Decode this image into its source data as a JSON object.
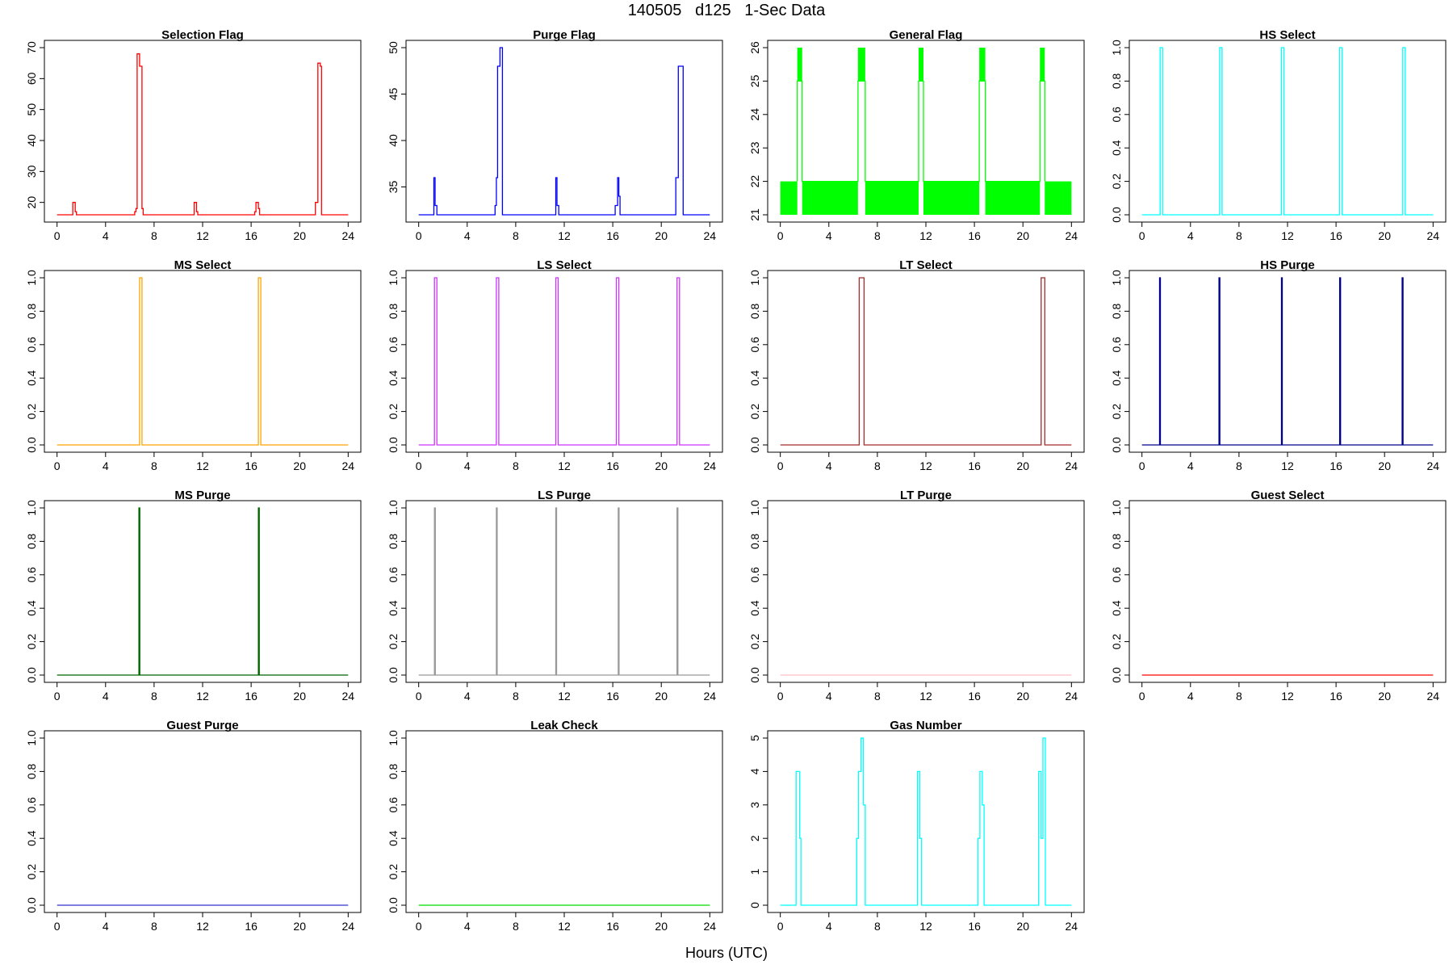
{
  "figure": {
    "title": "140505   d125   1-Sec Data",
    "xlabel": "Hours (UTC)"
  },
  "chart_data": [
    {
      "type": "line",
      "title": "Selection Flag",
      "color": "#ff0000",
      "xlim": [
        0,
        24
      ],
      "ylim": [
        16,
        70
      ],
      "xticks": [
        0,
        4,
        8,
        12,
        16,
        20,
        24
      ],
      "yticks": [
        20,
        30,
        40,
        50,
        60,
        70
      ],
      "series": [
        {
          "x": [
            0,
            1.3,
            1.3,
            1.5,
            1.5,
            1.6,
            1.6,
            6.4,
            6.4,
            6.5,
            6.5,
            6.6,
            6.6,
            6.8,
            6.8,
            7.0,
            7.0,
            7.1,
            7.1,
            11.3,
            11.3,
            11.5,
            11.5,
            11.6,
            11.6,
            16.3,
            16.3,
            16.4,
            16.4,
            16.6,
            16.6,
            16.7,
            16.7,
            21.3,
            21.3,
            21.5,
            21.5,
            21.7,
            21.7,
            21.8,
            21.8,
            24
          ],
          "y": [
            16,
            16,
            20,
            20,
            17,
            17,
            16,
            16,
            17,
            17,
            18,
            18,
            68,
            68,
            64,
            64,
            18,
            18,
            16,
            16,
            20,
            20,
            17,
            17,
            16,
            16,
            17,
            17,
            20,
            20,
            18,
            18,
            16,
            16,
            20,
            20,
            65,
            65,
            64,
            64,
            16,
            16
          ]
        }
      ]
    },
    {
      "type": "line",
      "title": "Purge Flag",
      "color": "#0000ff",
      "xlim": [
        0,
        24
      ],
      "ylim": [
        32,
        50
      ],
      "xticks": [
        0,
        4,
        8,
        12,
        16,
        20,
        24
      ],
      "yticks": [
        35,
        40,
        45,
        50
      ],
      "series": [
        {
          "x": [
            0,
            1.25,
            1.25,
            1.35,
            1.35,
            1.5,
            1.5,
            6.3,
            6.3,
            6.4,
            6.4,
            6.5,
            6.5,
            6.7,
            6.7,
            6.9,
            6.9,
            11.3,
            11.3,
            11.4,
            11.4,
            11.55,
            11.55,
            16.2,
            16.2,
            16.4,
            16.4,
            16.5,
            16.5,
            16.6,
            16.6,
            21.2,
            21.2,
            21.4,
            21.4,
            21.8,
            21.8,
            24
          ],
          "y": [
            32,
            32,
            36,
            36,
            33,
            33,
            32,
            32,
            33,
            33,
            36,
            36,
            48,
            48,
            50,
            50,
            32,
            32,
            36,
            36,
            33,
            33,
            32,
            32,
            33,
            33,
            36,
            36,
            34,
            34,
            32,
            32,
            36,
            36,
            48,
            48,
            32,
            32
          ]
        }
      ]
    },
    {
      "type": "line",
      "title": "General Flag",
      "color": "#00ff00",
      "xlim": [
        0,
        24
      ],
      "ylim": [
        21,
        26
      ],
      "xticks": [
        0,
        4,
        8,
        12,
        16,
        20,
        24
      ],
      "yticks": [
        21,
        22,
        23,
        24,
        25,
        26
      ],
      "bands": [
        [
          0,
          1.4,
          21,
          22
        ],
        [
          1.8,
          6.4,
          21,
          22
        ],
        [
          7.0,
          11.4,
          21,
          22
        ],
        [
          11.8,
          16.4,
          21,
          22
        ],
        [
          16.9,
          21.4,
          21,
          22
        ],
        [
          21.8,
          24,
          21,
          22
        ],
        [
          1.4,
          1.8,
          25,
          26
        ],
        [
          6.4,
          6.8,
          25,
          26
        ],
        [
          6.75,
          7.0,
          25,
          26
        ],
        [
          11.4,
          11.8,
          25,
          26
        ],
        [
          16.4,
          16.9,
          25,
          26
        ],
        [
          21.4,
          21.8,
          25,
          26
        ]
      ],
      "series": [
        {
          "x": [
            1.4,
            1.4,
            1.8,
            1.8,
            6.4,
            6.4,
            7.0,
            7.0,
            11.4,
            11.4,
            11.8,
            11.8,
            16.4,
            16.4,
            16.9,
            16.9,
            21.4,
            21.4,
            21.8,
            21.8
          ],
          "y": [
            22,
            25,
            25,
            22,
            22,
            25,
            25,
            22,
            22,
            25,
            25,
            22,
            22,
            25,
            25,
            22,
            22,
            25,
            25,
            22
          ]
        }
      ]
    },
    {
      "type": "line",
      "title": "HS Select",
      "color": "#00ffff",
      "xlim": [
        0,
        24
      ],
      "ylim": [
        0,
        1
      ],
      "xticks": [
        0,
        4,
        8,
        12,
        16,
        20,
        24
      ],
      "yticks": [
        0,
        0.2,
        0.4,
        0.6,
        0.8,
        1
      ],
      "series": [
        {
          "x": [
            0,
            1.5,
            1.5,
            1.7,
            1.7,
            6.4,
            6.4,
            6.6,
            6.6,
            11.5,
            11.5,
            11.7,
            11.7,
            16.3,
            16.3,
            16.5,
            16.5,
            21.5,
            21.5,
            21.7,
            21.7,
            24
          ],
          "y": [
            0,
            0,
            1,
            1,
            0,
            0,
            1,
            1,
            0,
            0,
            1,
            1,
            0,
            0,
            1,
            1,
            0,
            0,
            1,
            1,
            0,
            0
          ]
        }
      ]
    },
    {
      "type": "line",
      "title": "MS Select",
      "color": "#ffa500",
      "xlim": [
        0,
        24
      ],
      "ylim": [
        0,
        1
      ],
      "xticks": [
        0,
        4,
        8,
        12,
        16,
        20,
        24
      ],
      "yticks": [
        0,
        0.2,
        0.4,
        0.6,
        0.8,
        1
      ],
      "series": [
        {
          "x": [
            0,
            6.8,
            6.8,
            7.0,
            7.0,
            16.6,
            16.6,
            16.8,
            16.8,
            24
          ],
          "y": [
            0,
            0,
            1,
            1,
            0,
            0,
            1,
            1,
            0,
            0
          ]
        }
      ]
    },
    {
      "type": "line",
      "title": "LS Select",
      "color": "#cc33ff",
      "xlim": [
        0,
        24
      ],
      "ylim": [
        0,
        1
      ],
      "xticks": [
        0,
        4,
        8,
        12,
        16,
        20,
        24
      ],
      "yticks": [
        0,
        0.2,
        0.4,
        0.6,
        0.8,
        1
      ],
      "series": [
        {
          "x": [
            0,
            1.3,
            1.3,
            1.5,
            1.5,
            6.4,
            6.4,
            6.6,
            6.6,
            11.3,
            11.3,
            11.5,
            11.5,
            16.3,
            16.3,
            16.5,
            16.5,
            21.3,
            21.3,
            21.5,
            21.5,
            24
          ],
          "y": [
            0,
            0,
            1,
            1,
            0,
            0,
            1,
            1,
            0,
            0,
            1,
            1,
            0,
            0,
            1,
            1,
            0,
            0,
            1,
            1,
            0,
            0
          ]
        }
      ]
    },
    {
      "type": "line",
      "title": "LT Select",
      "color": "#a52a2a",
      "xlim": [
        0,
        24
      ],
      "ylim": [
        0,
        1
      ],
      "xticks": [
        0,
        4,
        8,
        12,
        16,
        20,
        24
      ],
      "yticks": [
        0,
        0.2,
        0.4,
        0.6,
        0.8,
        1
      ],
      "series": [
        {
          "x": [
            0,
            6.5,
            6.5,
            6.9,
            6.9,
            21.5,
            21.5,
            21.8,
            21.8,
            24
          ],
          "y": [
            0,
            0,
            1,
            1,
            0,
            0,
            1,
            1,
            0,
            0
          ]
        }
      ]
    },
    {
      "type": "line",
      "title": "HS Purge",
      "color": "#00008b",
      "xlim": [
        0,
        24
      ],
      "ylim": [
        0,
        1
      ],
      "xticks": [
        0,
        4,
        8,
        12,
        16,
        20,
        24
      ],
      "yticks": [
        0,
        0.2,
        0.4,
        0.6,
        0.8,
        1
      ],
      "series": [
        {
          "x": [
            0,
            1.45,
            1.45,
            1.52,
            1.52,
            6.35,
            6.35,
            6.42,
            6.42,
            11.5,
            11.5,
            11.57,
            11.57,
            16.3,
            16.3,
            16.37,
            16.37,
            21.45,
            21.45,
            21.52,
            21.52,
            24
          ],
          "y": [
            0,
            0,
            1,
            1,
            0,
            0,
            1,
            1,
            0,
            0,
            1,
            1,
            0,
            0,
            1,
            1,
            0,
            0,
            1,
            1,
            0,
            0
          ]
        }
      ]
    },
    {
      "type": "line",
      "title": "MS Purge",
      "color": "#006400",
      "xlim": [
        0,
        24
      ],
      "ylim": [
        0,
        1
      ],
      "xticks": [
        0,
        4,
        8,
        12,
        16,
        20,
        24
      ],
      "yticks": [
        0,
        0.2,
        0.4,
        0.6,
        0.8,
        1
      ],
      "series": [
        {
          "x": [
            0,
            6.75,
            6.75,
            6.82,
            6.82,
            16.6,
            16.6,
            16.67,
            16.67,
            24
          ],
          "y": [
            0,
            0,
            1,
            1,
            0,
            0,
            1,
            1,
            0,
            0
          ]
        }
      ]
    },
    {
      "type": "line",
      "title": "LS Purge",
      "color": "#999999",
      "xlim": [
        0,
        24
      ],
      "ylim": [
        0,
        1
      ],
      "xticks": [
        0,
        4,
        8,
        12,
        16,
        20,
        24
      ],
      "yticks": [
        0,
        0.2,
        0.4,
        0.6,
        0.8,
        1
      ],
      "series": [
        {
          "x": [
            0,
            1.3,
            1.3,
            1.37,
            1.37,
            6.4,
            6.4,
            6.47,
            6.47,
            11.3,
            11.3,
            11.37,
            11.37,
            16.45,
            16.45,
            16.52,
            16.52,
            21.3,
            21.3,
            21.37,
            21.37,
            24
          ],
          "y": [
            0,
            0,
            1,
            1,
            0,
            0,
            1,
            1,
            0,
            0,
            1,
            1,
            0,
            0,
            1,
            1,
            0,
            0,
            1,
            1,
            0,
            0
          ]
        }
      ]
    },
    {
      "type": "line",
      "title": "LT Purge",
      "color": "#ffc0cb",
      "xlim": [
        0,
        24
      ],
      "ylim": [
        0,
        1
      ],
      "xticks": [
        0,
        4,
        8,
        12,
        16,
        20,
        24
      ],
      "yticks": [
        0,
        0.2,
        0.4,
        0.6,
        0.8,
        1
      ],
      "series": [
        {
          "x": [
            0,
            24
          ],
          "y": [
            0,
            0
          ]
        }
      ]
    },
    {
      "type": "line",
      "title": "Guest Select",
      "color": "#ff0000",
      "xlim": [
        0,
        24
      ],
      "ylim": [
        0,
        1
      ],
      "xticks": [
        0,
        4,
        8,
        12,
        16,
        20,
        24
      ],
      "yticks": [
        0,
        0.2,
        0.4,
        0.6,
        0.8,
        1
      ],
      "series": [
        {
          "x": [
            0,
            24
          ],
          "y": [
            0,
            0
          ]
        }
      ]
    },
    {
      "type": "line",
      "title": "Guest Purge",
      "color": "#3333cc",
      "xlim": [
        0,
        24
      ],
      "ylim": [
        0,
        1
      ],
      "xticks": [
        0,
        4,
        8,
        12,
        16,
        20,
        24
      ],
      "yticks": [
        0,
        0.2,
        0.4,
        0.6,
        0.8,
        1
      ],
      "series": [
        {
          "x": [
            0,
            24
          ],
          "y": [
            0,
            0
          ]
        }
      ]
    },
    {
      "type": "line",
      "title": "Leak Check",
      "color": "#00dd00",
      "xlim": [
        0,
        24
      ],
      "ylim": [
        0,
        1
      ],
      "xticks": [
        0,
        4,
        8,
        12,
        16,
        20,
        24
      ],
      "yticks": [
        0,
        0.2,
        0.4,
        0.6,
        0.8,
        1
      ],
      "series": [
        {
          "x": [
            0,
            24
          ],
          "y": [
            0,
            0
          ]
        }
      ]
    },
    {
      "type": "line",
      "title": "Gas Number",
      "color": "#00ffff",
      "xlim": [
        0,
        24
      ],
      "ylim": [
        0,
        5
      ],
      "xticks": [
        0,
        4,
        8,
        12,
        16,
        20,
        24
      ],
      "yticks": [
        0,
        1,
        2,
        3,
        4,
        5
      ],
      "series": [
        {
          "x": [
            0,
            1.3,
            1.3,
            1.6,
            1.6,
            1.7,
            1.7,
            6.3,
            6.3,
            6.45,
            6.45,
            6.65,
            6.65,
            6.85,
            6.85,
            7.0,
            7.0,
            11.3,
            11.3,
            11.5,
            11.5,
            11.65,
            11.65,
            16.3,
            16.3,
            16.45,
            16.45,
            16.65,
            16.65,
            16.8,
            16.8,
            21.3,
            21.3,
            21.5,
            21.5,
            21.65,
            21.65,
            21.85,
            21.85,
            24
          ],
          "y": [
            0,
            0,
            4,
            4,
            2,
            2,
            0,
            0,
            2,
            2,
            4,
            4,
            5,
            5,
            3,
            3,
            0,
            0,
            4,
            4,
            2,
            2,
            0,
            0,
            2,
            2,
            4,
            4,
            3,
            3,
            0,
            0,
            4,
            4,
            2,
            2,
            5,
            5,
            0,
            0
          ]
        }
      ]
    }
  ]
}
